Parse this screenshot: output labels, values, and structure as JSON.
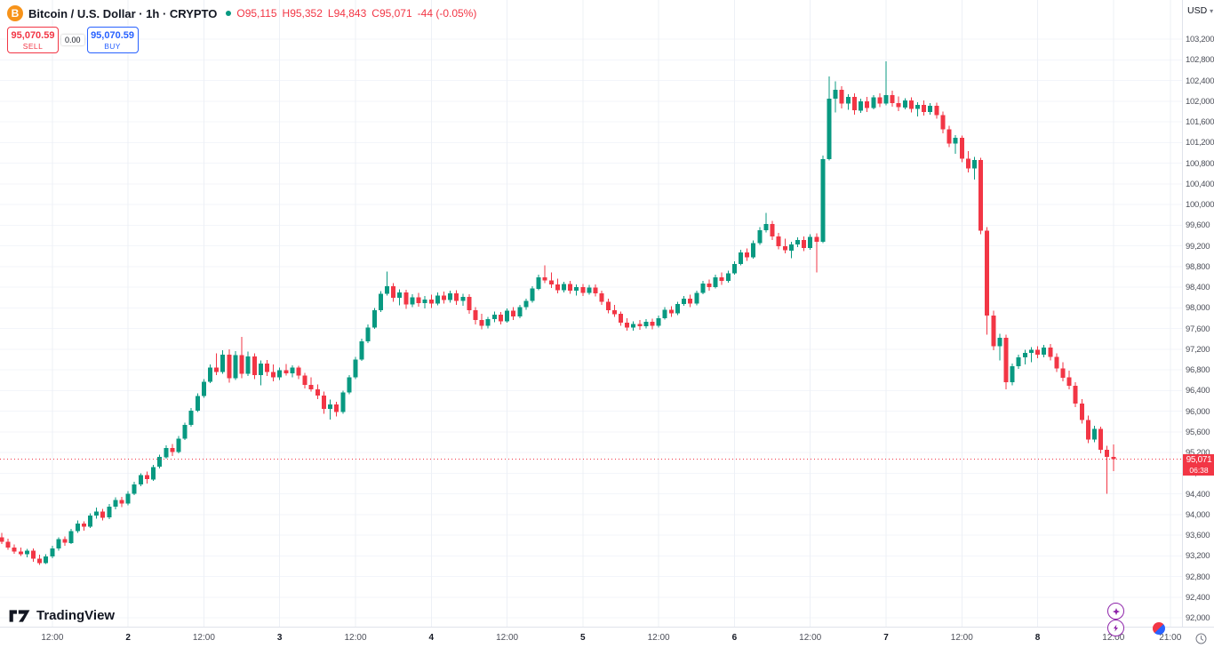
{
  "header": {
    "title": "Bitcoin / U.S. Dollar · 1h · CRYPTO",
    "currency": "USD",
    "ohlc": {
      "o_label": "O",
      "o_value": "95,115",
      "h_label": "H",
      "h_value": "95,352",
      "l_label": "L",
      "l_value": "94,843",
      "c_label": "C",
      "c_value": "95,071",
      "change": "-44 (-0.05%)"
    }
  },
  "trade_panel": {
    "sell_price": "95,070.59",
    "sell_label": "SELL",
    "spread": "0.00",
    "buy_price": "95,070.59",
    "buy_label": "BUY"
  },
  "footer": {
    "logo_text": "TradingView"
  },
  "price_label": {
    "price": "95,071",
    "countdown": "06:38"
  },
  "colors": {
    "up": "#089981",
    "down": "#f23645",
    "buy": "#2962ff",
    "sell": "#f23645",
    "bitcoin_orange": "#f7931a",
    "grid_h": "#f3f5fa",
    "grid_v": "#edf0f6",
    "axis_text": "#4c4f59"
  },
  "chart_data": {
    "type": "candlestick",
    "title": "Bitcoin / U.S. Dollar",
    "interval": "1h",
    "exchange": "CRYPTO",
    "last_price": 95071,
    "ylim": [
      92000,
      103200
    ],
    "y_ticks": [
      92000,
      92400,
      92800,
      93200,
      93600,
      94000,
      94400,
      94800,
      95200,
      95600,
      96000,
      96400,
      96800,
      97200,
      97600,
      98000,
      98400,
      98800,
      99200,
      99600,
      100000,
      100400,
      100800,
      101200,
      101600,
      102000,
      102400,
      102800,
      103200
    ],
    "x_ticks": [
      {
        "label": "12:00",
        "i": 8,
        "major": false
      },
      {
        "label": "2",
        "i": 20,
        "major": true
      },
      {
        "label": "12:00",
        "i": 32,
        "major": false
      },
      {
        "label": "3",
        "i": 44,
        "major": true
      },
      {
        "label": "12:00",
        "i": 56,
        "major": false
      },
      {
        "label": "4",
        "i": 68,
        "major": true
      },
      {
        "label": "12:00",
        "i": 80,
        "major": false
      },
      {
        "label": "5",
        "i": 92,
        "major": true
      },
      {
        "label": "12:00",
        "i": 104,
        "major": false
      },
      {
        "label": "6",
        "i": 116,
        "major": true
      },
      {
        "label": "12:00",
        "i": 128,
        "major": false
      },
      {
        "label": "7",
        "i": 140,
        "major": true
      },
      {
        "label": "12:00",
        "i": 152,
        "major": false
      },
      {
        "label": "8",
        "i": 164,
        "major": true
      },
      {
        "label": "12:00",
        "i": 176,
        "major": false
      },
      {
        "label": "21:00",
        "i": 185,
        "major": false
      }
    ],
    "candles": [
      [
        93560,
        93640,
        93430,
        93470
      ],
      [
        93470,
        93530,
        93320,
        93360
      ],
      [
        93360,
        93420,
        93240,
        93280
      ],
      [
        93280,
        93360,
        93200,
        93230
      ],
      [
        93230,
        93330,
        93170,
        93300
      ],
      [
        93300,
        93340,
        93080,
        93140
      ],
      [
        93140,
        93220,
        93020,
        93060
      ],
      [
        93060,
        93230,
        93040,
        93190
      ],
      [
        93190,
        93390,
        93150,
        93340
      ],
      [
        93340,
        93560,
        93300,
        93520
      ],
      [
        93520,
        93570,
        93390,
        93450
      ],
      [
        93450,
        93720,
        93430,
        93680
      ],
      [
        93680,
        93880,
        93640,
        93820
      ],
      [
        93820,
        93870,
        93690,
        93760
      ],
      [
        93760,
        94020,
        93740,
        93980
      ],
      [
        93980,
        94130,
        93920,
        94060
      ],
      [
        94060,
        94110,
        93880,
        93940
      ],
      [
        93940,
        94200,
        93910,
        94150
      ],
      [
        94150,
        94330,
        94100,
        94280
      ],
      [
        94280,
        94340,
        94140,
        94210
      ],
      [
        94210,
        94450,
        94180,
        94400
      ],
      [
        94400,
        94630,
        94370,
        94580
      ],
      [
        94580,
        94800,
        94550,
        94760
      ],
      [
        94760,
        94830,
        94600,
        94680
      ],
      [
        94680,
        94960,
        94650,
        94920
      ],
      [
        94920,
        95160,
        94890,
        95110
      ],
      [
        95110,
        95340,
        95080,
        95290
      ],
      [
        95290,
        95360,
        95130,
        95210
      ],
      [
        95210,
        95520,
        95180,
        95470
      ],
      [
        95470,
        95780,
        95440,
        95730
      ],
      [
        95730,
        96060,
        95700,
        96010
      ],
      [
        96010,
        96340,
        95980,
        96290
      ],
      [
        96290,
        96620,
        96260,
        96570
      ],
      [
        96570,
        96900,
        96540,
        96840
      ],
      [
        96840,
        97120,
        96700,
        96760
      ],
      [
        96760,
        97180,
        96720,
        97090
      ],
      [
        97090,
        97200,
        96550,
        96640
      ],
      [
        96640,
        97160,
        96600,
        97080
      ],
      [
        97080,
        97440,
        96640,
        96720
      ],
      [
        96720,
        97150,
        96680,
        97060
      ],
      [
        97060,
        97120,
        96620,
        96700
      ],
      [
        96700,
        96980,
        96500,
        96920
      ],
      [
        96920,
        96990,
        96680,
        96760
      ],
      [
        96760,
        96900,
        96580,
        96650
      ],
      [
        96650,
        96840,
        96600,
        96790
      ],
      [
        96790,
        96910,
        96690,
        96730
      ],
      [
        96730,
        96890,
        96650,
        96840
      ],
      [
        96840,
        96880,
        96620,
        96690
      ],
      [
        96690,
        96740,
        96440,
        96510
      ],
      [
        96510,
        96650,
        96380,
        96420
      ],
      [
        96420,
        96520,
        96230,
        96300
      ],
      [
        96300,
        96380,
        95950,
        96040
      ],
      [
        96040,
        96220,
        95840,
        96130
      ],
      [
        96130,
        96180,
        95900,
        95980
      ],
      [
        95980,
        96400,
        95950,
        96360
      ],
      [
        96360,
        96700,
        96330,
        96650
      ],
      [
        96650,
        97050,
        96620,
        97000
      ],
      [
        97000,
        97400,
        96970,
        97350
      ],
      [
        97350,
        97680,
        97320,
        97620
      ],
      [
        97620,
        98000,
        97590,
        97950
      ],
      [
        97950,
        98320,
        97920,
        98270
      ],
      [
        98270,
        98700,
        98240,
        98420
      ],
      [
        98420,
        98480,
        98120,
        98190
      ],
      [
        98190,
        98360,
        98050,
        98300
      ],
      [
        98300,
        98350,
        97980,
        98060
      ],
      [
        98060,
        98260,
        98010,
        98200
      ],
      [
        98200,
        98290,
        98020,
        98090
      ],
      [
        98090,
        98230,
        97990,
        98160
      ],
      [
        98160,
        98250,
        98000,
        98080
      ],
      [
        98080,
        98300,
        98050,
        98240
      ],
      [
        98240,
        98310,
        98080,
        98150
      ],
      [
        98150,
        98330,
        98100,
        98280
      ],
      [
        98280,
        98340,
        98060,
        98130
      ],
      [
        98130,
        98270,
        98040,
        98210
      ],
      [
        98210,
        98260,
        97880,
        97950
      ],
      [
        97950,
        98010,
        97680,
        97760
      ],
      [
        97760,
        97880,
        97580,
        97650
      ],
      [
        97650,
        97820,
        97600,
        97780
      ],
      [
        97780,
        97930,
        97720,
        97870
      ],
      [
        97870,
        97920,
        97680,
        97740
      ],
      [
        97740,
        97990,
        97710,
        97940
      ],
      [
        97940,
        98010,
        97760,
        97830
      ],
      [
        97830,
        98060,
        97800,
        98010
      ],
      [
        98010,
        98180,
        97960,
        98130
      ],
      [
        98130,
        98420,
        98100,
        98370
      ],
      [
        98370,
        98640,
        98340,
        98590
      ],
      [
        98590,
        98820,
        98480,
        98530
      ],
      [
        98530,
        98680,
        98380,
        98450
      ],
      [
        98450,
        98560,
        98280,
        98340
      ],
      [
        98340,
        98500,
        98300,
        98460
      ],
      [
        98460,
        98520,
        98270,
        98330
      ],
      [
        98330,
        98450,
        98240,
        98400
      ],
      [
        98400,
        98460,
        98230,
        98290
      ],
      [
        98290,
        98440,
        98250,
        98390
      ],
      [
        98390,
        98450,
        98220,
        98280
      ],
      [
        98280,
        98330,
        98060,
        98120
      ],
      [
        98120,
        98180,
        97890,
        97950
      ],
      [
        97950,
        98060,
        97820,
        97880
      ],
      [
        97880,
        97930,
        97650,
        97710
      ],
      [
        97710,
        97800,
        97560,
        97620
      ],
      [
        97620,
        97740,
        97560,
        97690
      ],
      [
        97690,
        97760,
        97570,
        97640
      ],
      [
        97640,
        97780,
        97600,
        97730
      ],
      [
        97730,
        97790,
        97580,
        97650
      ],
      [
        97650,
        97850,
        97620,
        97800
      ],
      [
        97800,
        98010,
        97770,
        97960
      ],
      [
        97960,
        98030,
        97820,
        97890
      ],
      [
        97890,
        98120,
        97860,
        98070
      ],
      [
        98070,
        98230,
        98040,
        98180
      ],
      [
        98180,
        98250,
        98010,
        98080
      ],
      [
        98080,
        98330,
        98050,
        98290
      ],
      [
        98290,
        98520,
        98260,
        98470
      ],
      [
        98470,
        98550,
        98330,
        98400
      ],
      [
        98400,
        98640,
        98370,
        98590
      ],
      [
        98590,
        98680,
        98440,
        98520
      ],
      [
        98520,
        98720,
        98490,
        98670
      ],
      [
        98670,
        98900,
        98640,
        98850
      ],
      [
        98850,
        99120,
        98820,
        99070
      ],
      [
        99070,
        99150,
        98910,
        98980
      ],
      [
        98980,
        99300,
        98950,
        99250
      ],
      [
        99250,
        99560,
        99220,
        99500
      ],
      [
        99500,
        99840,
        99460,
        99620
      ],
      [
        99620,
        99680,
        99310,
        99380
      ],
      [
        99380,
        99450,
        99130,
        99190
      ],
      [
        99190,
        99340,
        99050,
        99110
      ],
      [
        99110,
        99280,
        98960,
        99230
      ],
      [
        99230,
        99360,
        99170,
        99310
      ],
      [
        99310,
        99380,
        99100,
        99160
      ],
      [
        99160,
        99420,
        99120,
        99370
      ],
      [
        99370,
        99440,
        98680,
        99280
      ],
      [
        99280,
        100950,
        99250,
        100880
      ],
      [
        100880,
        102480,
        100850,
        102050
      ],
      [
        102050,
        102380,
        101780,
        102220
      ],
      [
        102220,
        102290,
        101860,
        101950
      ],
      [
        101950,
        102130,
        101830,
        102080
      ],
      [
        102080,
        102150,
        101740,
        101820
      ],
      [
        101820,
        102050,
        101770,
        102000
      ],
      [
        102000,
        102080,
        101790,
        101870
      ],
      [
        101870,
        102120,
        101840,
        102070
      ],
      [
        102070,
        102150,
        101880,
        101950
      ],
      [
        101950,
        102770,
        101920,
        102120
      ],
      [
        102120,
        102200,
        101890,
        101960
      ],
      [
        101960,
        102090,
        101810,
        101880
      ],
      [
        101880,
        102060,
        101840,
        102010
      ],
      [
        102010,
        102070,
        101780,
        101850
      ],
      [
        101850,
        101980,
        101700,
        101930
      ],
      [
        101930,
        102010,
        101720,
        101790
      ],
      [
        101790,
        101960,
        101740,
        101910
      ],
      [
        101910,
        101970,
        101660,
        101730
      ],
      [
        101730,
        101800,
        101380,
        101450
      ],
      [
        101450,
        101520,
        101110,
        101180
      ],
      [
        101180,
        101340,
        100980,
        101290
      ],
      [
        101290,
        101330,
        100820,
        100890
      ],
      [
        100890,
        101030,
        100620,
        100700
      ],
      [
        100700,
        100920,
        100480,
        100860
      ],
      [
        100860,
        100900,
        99420,
        99490
      ],
      [
        99490,
        99560,
        97480,
        97850
      ],
      [
        97850,
        97940,
        97180,
        97260
      ],
      [
        97260,
        97500,
        96980,
        97420
      ],
      [
        97420,
        97480,
        96420,
        96560
      ],
      [
        96560,
        96920,
        96500,
        96870
      ],
      [
        96870,
        97090,
        96820,
        97040
      ],
      [
        97040,
        97190,
        96900,
        97130
      ],
      [
        97130,
        97240,
        96950,
        97190
      ],
      [
        97190,
        97260,
        97020,
        97090
      ],
      [
        97090,
        97280,
        97040,
        97230
      ],
      [
        97230,
        97300,
        96980,
        97050
      ],
      [
        97050,
        97120,
        96760,
        96830
      ],
      [
        96830,
        96950,
        96580,
        96650
      ],
      [
        96650,
        96780,
        96420,
        96490
      ],
      [
        96490,
        96560,
        96080,
        96150
      ],
      [
        96150,
        96230,
        95760,
        95830
      ],
      [
        95830,
        95910,
        95380,
        95450
      ],
      [
        95450,
        95720,
        95400,
        95660
      ],
      [
        95660,
        95700,
        95180,
        95250
      ],
      [
        95250,
        95330,
        94400,
        95115
      ],
      [
        95115,
        95352,
        94843,
        95071
      ]
    ]
  }
}
